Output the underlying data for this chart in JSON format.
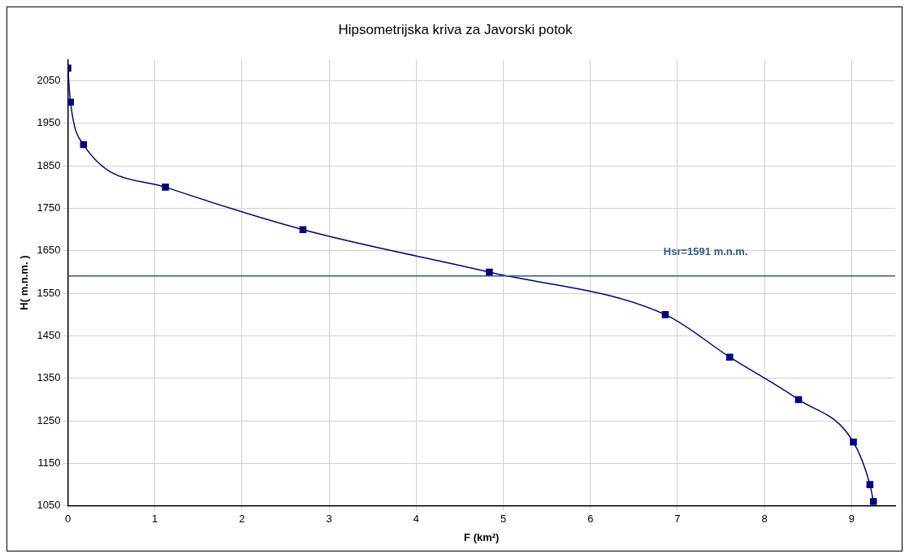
{
  "chart_data": {
    "type": "line",
    "title": "Hipsometrijska kriva za Javorski potok",
    "xlabel": "F (km²)",
    "ylabel": "H( m.n.m. )",
    "series": [
      {
        "color": "#000080",
        "x": [
          0,
          0.03,
          0.18,
          1.12,
          2.7,
          4.84,
          6.86,
          7.6,
          8.39,
          9.02,
          9.21,
          9.25
        ],
        "values": [
          2080,
          2000,
          1900,
          1800,
          1700,
          1600,
          1500,
          1400,
          1300,
          1200,
          1100,
          1060
        ]
      }
    ],
    "xlim": [
      0,
      9.5
    ],
    "xticks": [
      0,
      1,
      2,
      3,
      4,
      5,
      6,
      7,
      8,
      9
    ],
    "ylim": [
      1050,
      2100
    ],
    "yticks": [
      1050,
      1150,
      1250,
      1350,
      1450,
      1550,
      1650,
      1750,
      1850,
      1950,
      2050
    ],
    "grid": true,
    "legend": false,
    "marker": "square",
    "line_style": "solid",
    "ref_lines": [
      {
        "axis": "y",
        "value": 1591,
        "label": "Hsr=1591 m.n.m.",
        "color": "#2f5b82"
      }
    ]
  }
}
